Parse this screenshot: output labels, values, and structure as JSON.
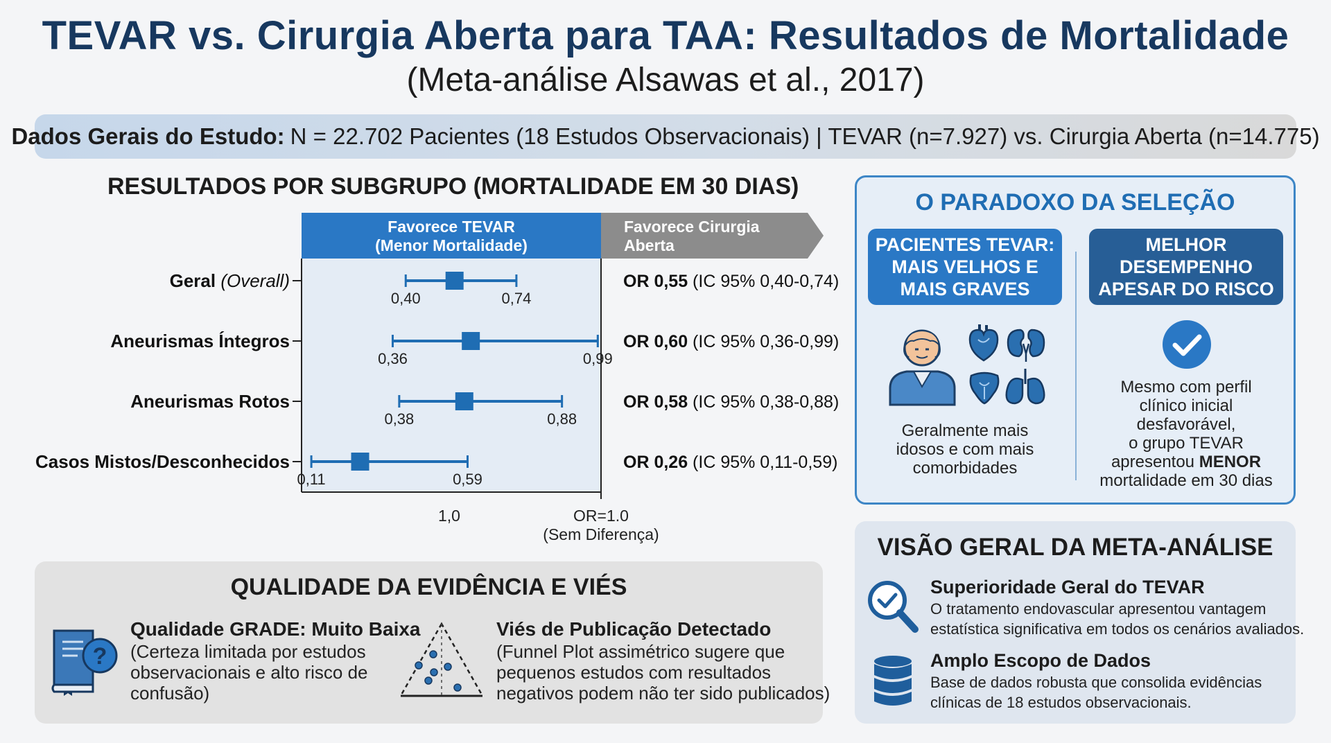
{
  "title": "TEVAR vs. Cirurgia Aberta para TAA: Resultados de Mortalidade",
  "subtitle": "(Meta-análise Alsawas et al., 2017)",
  "banner": {
    "label": "Dados Gerais do Estudo:",
    "text": "N = 22.702 Pacientes (18 Estudos Observacionais) | TEVAR (n=7.927) vs. Cirurgia Aberta (n=14.775)"
  },
  "chart_data": {
    "type": "forest",
    "title": "RESULTADOS POR SUBGRUPO (MORTALIDADE EM 30 DIAS)",
    "header_left": [
      "Favorece TEVAR",
      "(Menor Mortalidade)"
    ],
    "header_right": [
      "Favorece Cirurgia",
      "Aberta"
    ],
    "rows": [
      {
        "label": "Geral",
        "label_italic": "(Overall)",
        "or": 0.55,
        "lo": 0.4,
        "hi": 0.74,
        "lo_label": "0,40",
        "hi_label": "0,74",
        "or_text": "OR 0,55",
        "ci_text": "(IC 95% 0,40-0,74)"
      },
      {
        "label": "Aneurismas Íntegros",
        "label_italic": "",
        "or": 0.6,
        "lo": 0.36,
        "hi": 0.99,
        "lo_label": "0,36",
        "hi_label": "0,99",
        "or_text": "OR 0,60",
        "ci_text": "(IC 95% 0,36-0,99)"
      },
      {
        "label": "Aneurismas Rotos",
        "label_italic": "",
        "or": 0.58,
        "lo": 0.38,
        "hi": 0.88,
        "lo_label": "0,38",
        "hi_label": "0,88",
        "or_text": "OR 0,58",
        "ci_text": "(IC 95% 0,38-0,88)"
      },
      {
        "label": "Casos Mistos/Desconhecidos",
        "label_italic": "",
        "or": 0.26,
        "lo": 0.11,
        "hi": 0.59,
        "lo_label": "0,11",
        "hi_label": "0,59",
        "or_text": "OR 0,26",
        "ci_text": "(IC 95% 0,11-0,59)"
      }
    ],
    "x_tick": "1,0",
    "ref_label": [
      "OR=1.0",
      "(Sem Diferença)"
    ],
    "colors": {
      "tevar": "#2a78c5",
      "surgery": "#8c8c8c",
      "marker": "#1f6db3"
    }
  },
  "paradox": {
    "title": "O PARADOXO DA SELEÇÃO",
    "left_pill": [
      "PACIENTES TEVAR:",
      "MAIS VELHOS E",
      "MAIS GRAVES"
    ],
    "left_text": [
      "Geralmente mais",
      "idosos e com mais",
      "comorbidades"
    ],
    "right_pill": [
      "MELHOR",
      "DESEMPENHO",
      "APESAR DO RISCO"
    ],
    "right_text": [
      "Mesmo com perfil",
      "clínico inicial",
      "desfavorável,",
      "o grupo TEVAR"
    ],
    "right_text_pre": "apresentou ",
    "right_text_bold": "MENOR",
    "right_text_last": "mortalidade em 30 dias",
    "icons": [
      "elderly-patient-icon",
      "heart-icon",
      "kidneys-icon",
      "liver-icon",
      "lungs-icon",
      "check-icon"
    ]
  },
  "overview": {
    "title": "VISÃO GERAL DA META-ANÁLISE",
    "items": [
      {
        "head": "Superioridade Geral do TEVAR",
        "lines": [
          "O tratamento endovascular apresentou vantagem",
          "estatística significativa em todos os cenários avaliados."
        ],
        "icon": "magnifier-check-icon"
      },
      {
        "head": "Amplo Escopo de Dados",
        "lines": [
          "Base de dados robusta que consolida evidências",
          "clínicas de 18 estudos observacionais."
        ],
        "icon": "database-icon"
      }
    ]
  },
  "quality": {
    "title": "QUALIDADE DA EVIDÊNCIA E VIÉS",
    "items": [
      {
        "head": "Qualidade GRADE: Muito Baixa",
        "lines": [
          "(Certeza limitada por estudos",
          "observacionais e alto risco de",
          "confusão)"
        ],
        "icon": "book-question-icon"
      },
      {
        "head": "Viés de Publicação Detectado",
        "lines": [
          "(Funnel Plot assimétrico sugere que",
          "pequenos estudos com resultados",
          "negativos podem não ter sido publicados)"
        ],
        "icon": "funnel-plot-icon"
      }
    ]
  }
}
